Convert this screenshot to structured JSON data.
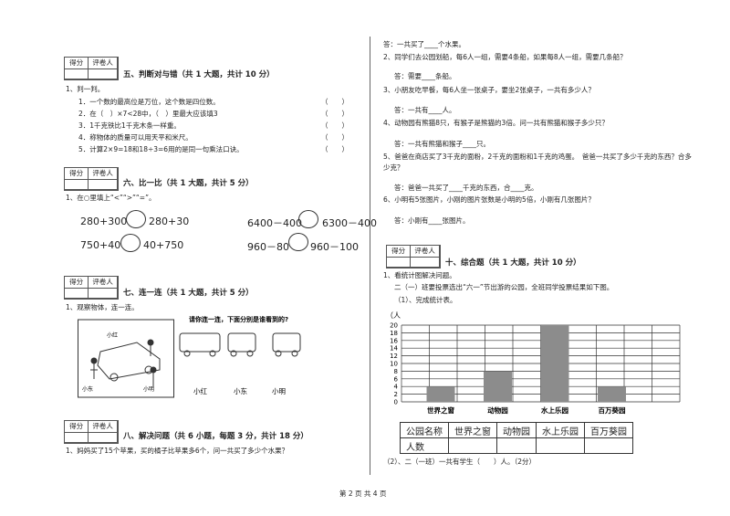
{
  "score_box": {
    "score": "得分",
    "grader": "评卷人"
  },
  "section5": {
    "heading": "五、判断对与错（共 1 大题，共计 10 分）",
    "question": "1、判一判。",
    "items": [
      "1．一个数的最高位是万位，这个数是四位数。",
      "2．在（　）×7<28中，（　）里最大应该填3",
      "3．1千克铁比1千克木条一样重。",
      "4．称物体的质量可以用天平和米尺。",
      "5．计算2×9=18和18÷3=6用的是同一句乘法口诀。"
    ],
    "blank": "（　　）"
  },
  "section6": {
    "heading": "六、比一比（共 1 大题，共计 5 分）",
    "question": "1、在○里填上“<”“>”“=”。",
    "comparisons": [
      {
        "left": "280+300",
        "right": "280+30"
      },
      {
        "left": "6400－400",
        "right": "6300－400"
      },
      {
        "left": "750+40",
        "right": "40+750"
      },
      {
        "left": "960－80",
        "right": "960－100"
      }
    ]
  },
  "section7": {
    "heading": "七、连一连（共 1 大题，共计 5 分）",
    "question": "1、观察物体，连一连。",
    "prompt": "请你连一连，下面分别是谁看到的?",
    "picture_names": [
      "小红",
      "小东",
      "小明"
    ],
    "options": [
      "小红",
      "小东",
      "小明"
    ]
  },
  "section8": {
    "heading": "八、解决问题（共 6 小题，每题 3 分，共计 18 分）",
    "problems": [
      {
        "question": "1、妈妈买了15个苹果，买的橘子比苹果多6个，问一共买了多少个水果？",
        "answer": "答：一共买了____个水果。"
      },
      {
        "question": "2、同学们去公园划船，每6人一组，需要4条船，如果每8人一组，需要几条船？",
        "answer": "答：需要____条船。"
      },
      {
        "question": "3、小朋友吃早餐，每6人坐一张桌子，要坐2张桌子，一共有多少人？",
        "answer": "答：一共有____人。"
      },
      {
        "question": "4、动物园有熊猫8只，有猴子是熊猫的3倍。问一共有熊猫和猴子多少只？",
        "answer": "答：一共有熊猫和猴子____只。"
      },
      {
        "question": "5、爸爸在商店买了3千克的面粉，2千克的面粉和1千克的鸡蛋。　爸爸一共买了多少千克的东西？合多少克？",
        "answer": "答：爸爸一共买了____千克的东西，合____克。"
      },
      {
        "question": "6、小明有5张图片，小刚的图片张数是小明的5倍，小刚有几张图片？",
        "answer": "答：小刚有____张图片。"
      }
    ]
  },
  "section10": {
    "heading": "十、综合题（共 1 大题，共计 10 分）",
    "question": "1、看统计图解决问题。",
    "intro": "二（一）班要投票选出“六一”节出游的公园，全班同学投票结果如下图。",
    "task1": "（1）、完成统计表。",
    "chart": {
      "type": "bar",
      "y_label": "（人",
      "categories": [
        "世界之窗",
        "动物园",
        "水上乐园",
        "百万葵园"
      ],
      "values": [
        4,
        8,
        20,
        4
      ],
      "color": "#8c8c8c",
      "ylim": [
        0,
        20
      ],
      "yticks": [
        0,
        2,
        4,
        6,
        8,
        10,
        12,
        14,
        16,
        18,
        20
      ],
      "grid": true
    },
    "table": {
      "header": [
        "公园名称",
        "世界之窗",
        "动物园",
        "水上乐园",
        "百万葵园"
      ],
      "row_label": "人数"
    },
    "task2": "（2）、二（一班）一共有学生（　　）人。（2分）"
  },
  "footer": "第 2 页 共 4 页"
}
